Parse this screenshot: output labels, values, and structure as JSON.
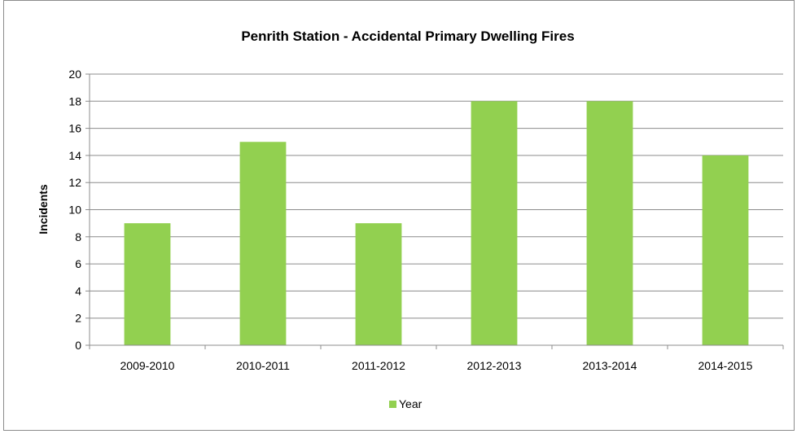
{
  "chart_data": {
    "type": "bar",
    "title": "Penrith Station - Accidental Primary Dwelling Fires",
    "xlabel": "",
    "ylabel": "Incidents",
    "categories": [
      "2009-2010",
      "2010-2011",
      "2011-2012",
      "2012-2013",
      "2013-2014",
      "2014-2015"
    ],
    "series": [
      {
        "name": "Year",
        "values": [
          9,
          15,
          9,
          18,
          18,
          14
        ],
        "color": "#92d050"
      }
    ],
    "ylim": [
      0,
      20
    ],
    "yticks": [
      0,
      2,
      4,
      6,
      8,
      10,
      12,
      14,
      16,
      18,
      20
    ],
    "grid": true,
    "legend": "bottom"
  }
}
